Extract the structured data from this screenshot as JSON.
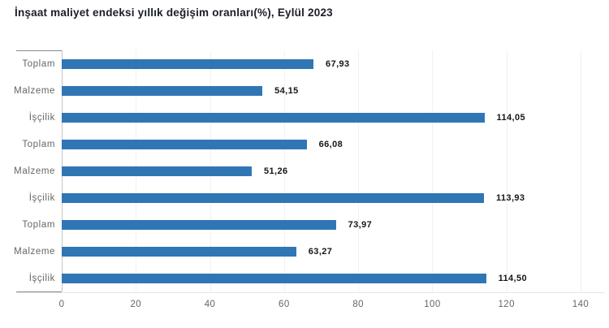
{
  "title": "İnşaat maliyet endeksi yıllık değişim oranları(%), Eylül 2023",
  "colors": {
    "bar": "#3076B5",
    "title_text": "#1b1e26",
    "category_text": "#666666",
    "value_text": "#161616",
    "tick_text": "#666666",
    "category_axis_line": "#c4c4c4",
    "axis_end_cap": "#8a8a8a",
    "value_axis_line": "#e7e7e7",
    "gridline": "#f1f1f1"
  },
  "chart_data": {
    "type": "bar",
    "orientation": "horizontal",
    "title": "İnşaat maliyet endeksi yıllık değişim oranları(%), Eylül 2023",
    "categories": [
      "Toplam",
      "Malzeme",
      "İşçilik",
      "Toplam",
      "Malzeme",
      "İşçilik",
      "Toplam",
      "Malzeme",
      "İşçilik"
    ],
    "values": [
      67.93,
      54.15,
      114.05,
      66.08,
      51.26,
      113.93,
      73.97,
      63.27,
      114.5
    ],
    "value_labels": [
      "67,93",
      "54,15",
      "114,05",
      "66,08",
      "51,26",
      "113,93",
      "73,97",
      "63,27",
      "114,50"
    ],
    "x_ticks": [
      0,
      20,
      40,
      60,
      80,
      100,
      120,
      140
    ],
    "x_tick_labels": [
      "0",
      "20",
      "40",
      "60",
      "80",
      "100",
      "120",
      "140"
    ],
    "xlim": [
      0,
      140
    ],
    "xlabel": "",
    "ylabel": "",
    "grid": "faint-vertical",
    "legend": false,
    "data_labels": true
  }
}
